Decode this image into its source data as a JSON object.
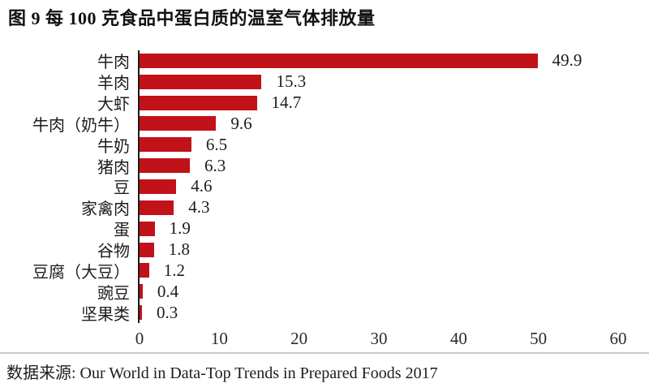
{
  "title": "图 9  每 100 克食品中蛋白质的温室气体排放量",
  "footer": {
    "source": "数据来源: Our World in Data-Top Trends in Prepared Foods 2017"
  },
  "colors": {
    "bar": "#c1121a",
    "axis": "#1c1c1c",
    "separator": "#c9c9c9",
    "text": "#1c1c1c"
  },
  "chart_data": {
    "type": "bar",
    "orientation": "horizontal",
    "title": "图 9 每 100 克食品中蛋白质的温室气体排放量",
    "categories": [
      "牛肉",
      "羊肉",
      "大虾",
      "牛肉（奶牛）",
      "牛奶",
      "猪肉",
      "豆",
      "家禽肉",
      "蛋",
      "谷物",
      "豆腐（大豆）",
      "豌豆",
      "坚果类"
    ],
    "values": [
      49.9,
      15.3,
      14.7,
      9.6,
      6.5,
      6.3,
      4.6,
      4.3,
      1.9,
      1.8,
      1.2,
      0.4,
      0.3
    ],
    "xlabel": "",
    "ylabel": "",
    "xlim": [
      0,
      60
    ],
    "x_ticks": [
      0,
      10,
      20,
      30,
      40,
      50,
      60
    ],
    "grid": false,
    "legend": false,
    "value_labels": true
  }
}
